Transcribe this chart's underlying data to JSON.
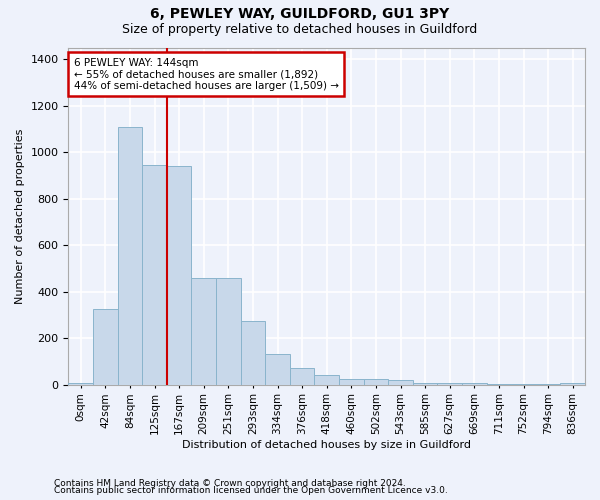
{
  "title": "6, PEWLEY WAY, GUILDFORD, GU1 3PY",
  "subtitle": "Size of property relative to detached houses in Guildford",
  "xlabel": "Distribution of detached houses by size in Guildford",
  "ylabel": "Number of detached properties",
  "footnote1": "Contains HM Land Registry data © Crown copyright and database right 2024.",
  "footnote2": "Contains public sector information licensed under the Open Government Licence v3.0.",
  "bar_labels": [
    "0sqm",
    "42sqm",
    "84sqm",
    "125sqm",
    "167sqm",
    "209sqm",
    "251sqm",
    "293sqm",
    "334sqm",
    "376sqm",
    "418sqm",
    "460sqm",
    "502sqm",
    "543sqm",
    "585sqm",
    "627sqm",
    "669sqm",
    "711sqm",
    "752sqm",
    "794sqm",
    "836sqm"
  ],
  "bar_values": [
    8,
    325,
    1110,
    945,
    940,
    460,
    460,
    275,
    130,
    70,
    40,
    25,
    25,
    20,
    8,
    8,
    8,
    5,
    5,
    2,
    8
  ],
  "bar_color": "#c8d8ea",
  "bar_edge_color": "#8ab4cc",
  "ylim": [
    0,
    1450
  ],
  "yticks": [
    0,
    200,
    400,
    600,
    800,
    1000,
    1200,
    1400
  ],
  "property_line_x": 3.5,
  "property_line_color": "#cc0000",
  "annotation_text": "6 PEWLEY WAY: 144sqm\n← 55% of detached houses are smaller (1,892)\n44% of semi-detached houses are larger (1,509) →",
  "annotation_box_color": "#ffffff",
  "annotation_box_edge_color": "#cc0000",
  "background_color": "#eef2fb",
  "grid_color": "#ffffff",
  "title_fontsize": 10,
  "subtitle_fontsize": 9,
  "ylabel_fontsize": 8,
  "xlabel_fontsize": 8,
  "tick_fontsize": 8,
  "xtick_fontsize": 7.5,
  "footnote_fontsize": 6.5
}
